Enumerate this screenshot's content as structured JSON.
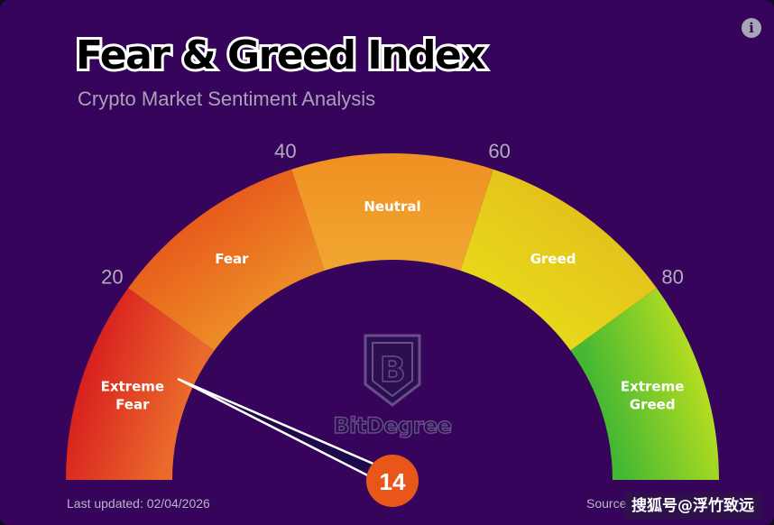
{
  "header": {
    "title": "Fear & Greed Index",
    "subtitle": "Crypto Market Sentiment Analysis",
    "info_icon": "info-icon"
  },
  "gauge": {
    "value": 14,
    "value_label": "14",
    "min": 0,
    "max": 100,
    "needle_color": "#ffffff",
    "hub_color": "#e8561a",
    "background_color": "#36045b",
    "segments": [
      {
        "label_lines": [
          "Extreme",
          "Fear"
        ],
        "from": 0,
        "to": 20,
        "color_outer": "#d8201f",
        "color_inner": "#ea6a2b"
      },
      {
        "label_lines": [
          "Fear"
        ],
        "from": 20,
        "to": 40,
        "color_outer": "#e85b1c",
        "color_inner": "#ec8a26"
      },
      {
        "label_lines": [
          "Neutral"
        ],
        "from": 40,
        "to": 60,
        "color_outer": "#f08f22",
        "color_inner": "#f0a530"
      },
      {
        "label_lines": [
          "Greed"
        ],
        "from": 60,
        "to": 80,
        "color_outer": "#e4c21b",
        "color_inner": "#e7d61a"
      },
      {
        "label_lines": [
          "Extreme",
          "Greed"
        ],
        "from": 80,
        "to": 100,
        "color_outer": "#b5dd20",
        "color_inner": "#45b833"
      }
    ],
    "ticks": [
      {
        "value": 20,
        "label": "20"
      },
      {
        "value": 40,
        "label": "40"
      },
      {
        "value": 60,
        "label": "60"
      },
      {
        "value": 80,
        "label": "80"
      }
    ]
  },
  "brand": {
    "name": "BitDegree",
    "logo_icon": "bitdegree-shield-logo"
  },
  "footer": {
    "last_updated": "Last updated: 02/04/2026",
    "source_partial": "Source",
    "watermark": "搜狐号@浮竹致远"
  }
}
